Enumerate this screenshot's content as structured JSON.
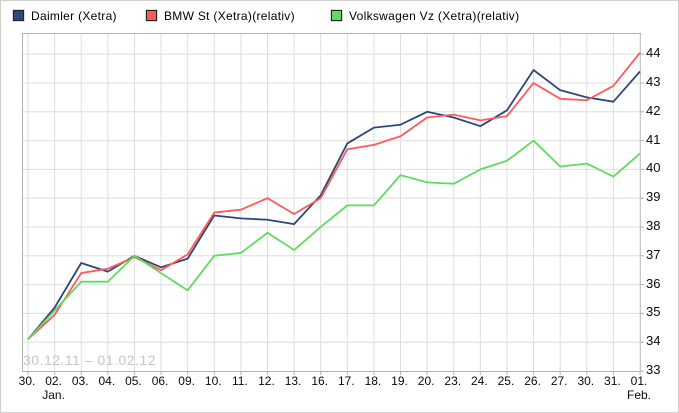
{
  "legend": [
    {
      "label": "Daimler (Xetra)",
      "color": "#2F4679"
    },
    {
      "label": "BMW St (Xetra)(relativ)",
      "color": "#FF5A5A"
    },
    {
      "label": "Volkswagen Vz (Xetra)(relativ)",
      "color": "#60DB60"
    }
  ],
  "watermark": "30.12.11 – 01.02.12",
  "chart_data": {
    "type": "line",
    "categories": [
      "30.",
      "02.",
      "03.",
      "04.",
      "05.",
      "06.",
      "09.",
      "10.",
      "11.",
      "12.",
      "13.",
      "16.",
      "17.",
      "18.",
      "19.",
      "20.",
      "23.",
      "24.",
      "25.",
      "26.",
      "27.",
      "30.",
      "31.",
      "01."
    ],
    "month_labels": [
      {
        "index": 1,
        "label": "Jan."
      },
      {
        "index": 23,
        "label": "Feb."
      }
    ],
    "series": [
      {
        "name": "Daimler (Xetra)",
        "color": "#2F4679",
        "values": [
          34.1,
          35.2,
          36.75,
          36.45,
          37.0,
          36.6,
          36.9,
          38.4,
          38.3,
          38.25,
          38.1,
          39.1,
          40.9,
          41.45,
          41.55,
          42.0,
          41.8,
          41.5,
          42.05,
          43.45,
          42.75,
          42.5,
          42.35,
          43.4
        ]
      },
      {
        "name": "BMW St (Xetra)(relativ)",
        "color": "#FF5A5A",
        "values": [
          34.1,
          34.95,
          36.4,
          36.55,
          36.95,
          36.5,
          37.05,
          38.5,
          38.6,
          39.0,
          38.45,
          39.0,
          40.7,
          40.85,
          41.15,
          41.8,
          41.9,
          41.7,
          41.85,
          43.0,
          42.45,
          42.4,
          42.9,
          44.05
        ]
      },
      {
        "name": "Volkswagen Vz (Xetra)(relativ)",
        "color": "#60DB60",
        "values": [
          34.1,
          35.1,
          36.1,
          36.1,
          37.0,
          36.4,
          35.8,
          37.0,
          37.1,
          37.8,
          37.2,
          38.0,
          38.75,
          38.75,
          39.8,
          39.55,
          39.5,
          40.0,
          40.3,
          41.0,
          40.1,
          40.2,
          39.75,
          40.55
        ]
      }
    ],
    "yticks": [
      33,
      34,
      35,
      36,
      37,
      38,
      39,
      40,
      41,
      42,
      43,
      44
    ],
    "ylim": [
      33,
      44.7
    ],
    "grid": true,
    "grid_color": "#dedede",
    "frame_color": "#b2b2b2",
    "watermark_color": "#c6c6c6",
    "background_color": "#ffffff",
    "legend_position": "top",
    "y_axis_side": "right",
    "date_range": "30.12.11 – 01.02.12"
  }
}
